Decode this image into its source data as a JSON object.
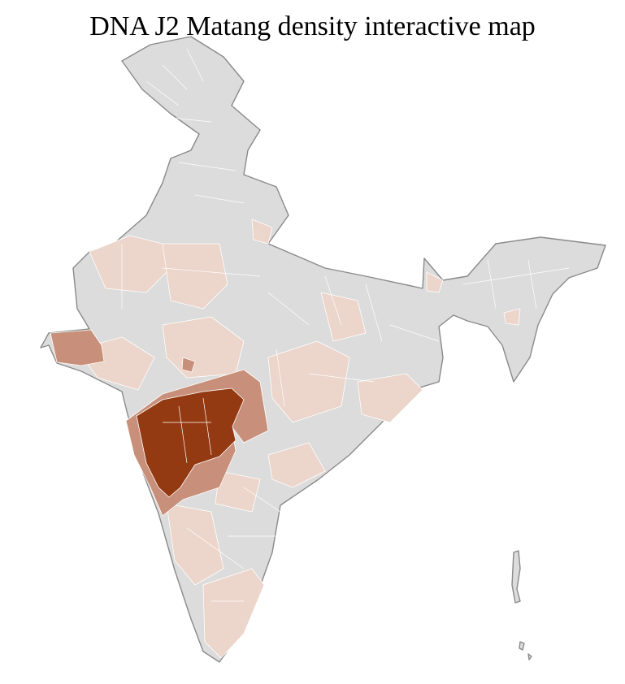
{
  "title": "DNA J2 Matang density interactive map",
  "colors": {
    "none": "#dcdcdc",
    "low": "#ecd5ca",
    "medium": "#c8907a",
    "high": "#943a12",
    "border": "#8a8a8a",
    "district_border": "#ffffff"
  }
}
